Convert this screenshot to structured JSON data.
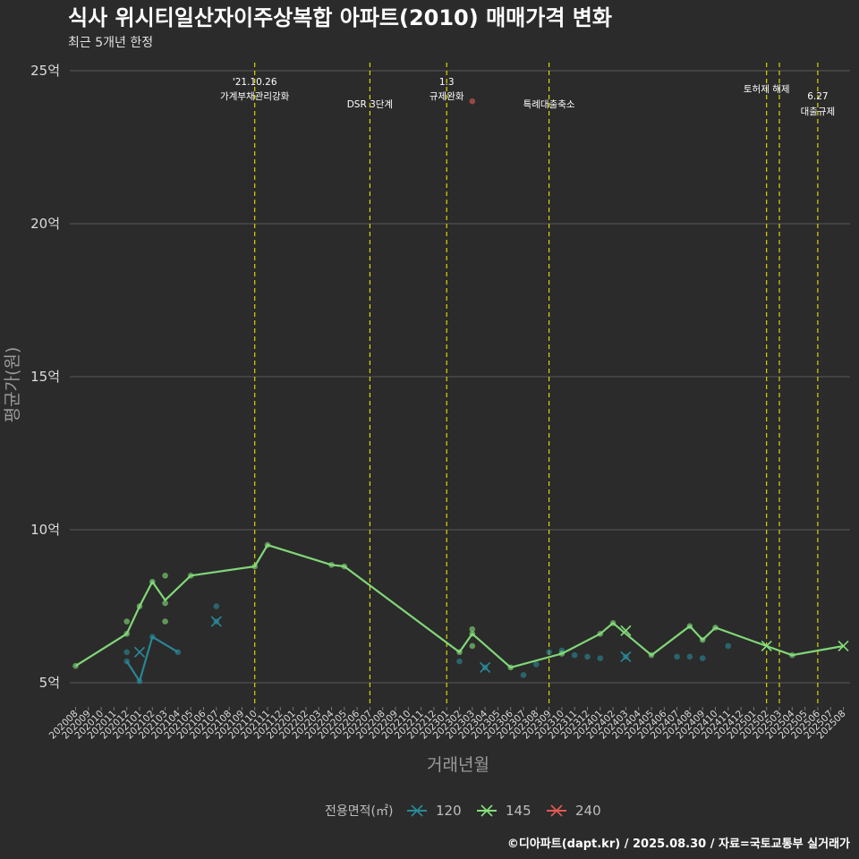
{
  "chart_data": {
    "type": "line",
    "title": "식사 위시티일산자이주상복합 아파트(2010) 매매가격 변화",
    "subtitle": "최근 5개년 한정",
    "xlabel": "거래년월",
    "ylabel": "평균가(원)",
    "caption": "©디아파트(dapt.kr) / 2025.08.30 / 자료=국토교통부 실거래가",
    "ylim": [
      4.5,
      25.5
    ],
    "y_ticks": [
      {
        "value": 5,
        "label": "5억"
      },
      {
        "value": 10,
        "label": "10억"
      },
      {
        "value": 15,
        "label": "15억"
      },
      {
        "value": 20,
        "label": "20억"
      },
      {
        "value": 25,
        "label": "25억"
      }
    ],
    "categories": [
      "202008",
      "202009",
      "202010",
      "202011",
      "202012",
      "202101",
      "202102",
      "202103",
      "202104",
      "202105",
      "202106",
      "202107",
      "202108",
      "202109",
      "202110",
      "202111",
      "202112",
      "202201",
      "202202",
      "202203",
      "202204",
      "202205",
      "202206",
      "202207",
      "202208",
      "202209",
      "202210",
      "202211",
      "202212",
      "202301",
      "202302",
      "202303",
      "202304",
      "202305",
      "202306",
      "202307",
      "202308",
      "202309",
      "202310",
      "202311",
      "202312",
      "202401",
      "202402",
      "202403",
      "202404",
      "202405",
      "202406",
      "202407",
      "202408",
      "202409",
      "202410",
      "202411",
      "202412",
      "202501",
      "202502",
      "202503",
      "202504",
      "202505",
      "202506",
      "202507",
      "202508"
    ],
    "legend": {
      "title": "전용면적(㎡)",
      "items": [
        {
          "name": "120",
          "color": "#2a8a9a"
        },
        {
          "name": "145",
          "color": "#86e07c"
        },
        {
          "name": "240",
          "color": "#e05a52"
        }
      ]
    },
    "series": [
      {
        "name": "120",
        "color": "#2a8a9a",
        "line": [
          [
            "202012",
            5.7
          ],
          [
            "202101",
            5.05
          ],
          [
            "202102",
            6.5
          ],
          [
            "202104",
            6.0
          ]
        ],
        "points": [
          [
            "202012",
            6.0
          ],
          [
            "202012",
            5.7
          ],
          [
            "202101",
            5.05
          ],
          [
            "202102",
            6.5
          ],
          [
            "202104",
            6.0
          ],
          [
            "202107",
            7.5
          ],
          [
            "202107",
            7.0
          ],
          [
            "202302",
            5.7
          ],
          [
            "202304",
            5.5
          ],
          [
            "202307",
            5.25
          ],
          [
            "202308",
            5.6
          ],
          [
            "202309",
            6.0
          ],
          [
            "202310",
            6.05
          ],
          [
            "202311",
            5.9
          ],
          [
            "202312",
            5.85
          ],
          [
            "202401",
            5.8
          ],
          [
            "202403",
            5.85
          ],
          [
            "202407",
            5.85
          ],
          [
            "202408",
            5.85
          ],
          [
            "202409",
            5.8
          ],
          [
            "202411",
            6.2
          ]
        ],
        "x_marks": [
          [
            "202101",
            6.0
          ],
          [
            "202107",
            7.0
          ],
          [
            "202304",
            5.5
          ],
          [
            "202403",
            5.85
          ]
        ]
      },
      {
        "name": "145",
        "color": "#86e07c",
        "line": [
          [
            "202008",
            5.55
          ],
          [
            "202012",
            6.6
          ],
          [
            "202101",
            7.5
          ],
          [
            "202102",
            8.3
          ],
          [
            "202103",
            7.7
          ],
          [
            "202105",
            8.5
          ],
          [
            "202110",
            8.8
          ],
          [
            "202111",
            9.5
          ],
          [
            "202204",
            8.85
          ],
          [
            "202205",
            8.8
          ],
          [
            "202302",
            6.0
          ],
          [
            "202303",
            6.6
          ],
          [
            "202306",
            5.5
          ],
          [
            "202310",
            5.95
          ],
          [
            "202401",
            6.6
          ],
          [
            "202402",
            6.95
          ],
          [
            "202405",
            5.9
          ],
          [
            "202408",
            6.85
          ],
          [
            "202409",
            6.4
          ],
          [
            "202410",
            6.8
          ],
          [
            "202502",
            6.2
          ],
          [
            "202504",
            5.9
          ],
          [
            "202508",
            6.2
          ]
        ],
        "points": [
          [
            "202008",
            5.55
          ],
          [
            "202012",
            7.0
          ],
          [
            "202012",
            6.6
          ],
          [
            "202101",
            7.5
          ],
          [
            "202102",
            8.3
          ],
          [
            "202103",
            8.5
          ],
          [
            "202103",
            7.6
          ],
          [
            "202103",
            7.0
          ],
          [
            "202105",
            8.5
          ],
          [
            "202110",
            8.8
          ],
          [
            "202111",
            9.5
          ],
          [
            "202204",
            8.85
          ],
          [
            "202205",
            8.8
          ],
          [
            "202302",
            6.0
          ],
          [
            "202303",
            6.75
          ],
          [
            "202303",
            6.6
          ],
          [
            "202303",
            6.2
          ],
          [
            "202306",
            5.5
          ],
          [
            "202310",
            5.95
          ],
          [
            "202401",
            6.6
          ],
          [
            "202402",
            6.95
          ],
          [
            "202405",
            5.9
          ],
          [
            "202408",
            6.85
          ],
          [
            "202409",
            6.4
          ],
          [
            "202410",
            6.8
          ],
          [
            "202504",
            5.9
          ]
        ],
        "x_marks": [
          [
            "202403",
            6.7
          ],
          [
            "202502",
            6.2
          ],
          [
            "202508",
            6.2
          ]
        ]
      },
      {
        "name": "240",
        "color": "#e05a52",
        "line": [],
        "points": [
          [
            "202303",
            24.0
          ]
        ],
        "x_marks": []
      }
    ],
    "annotations": [
      {
        "x": "202110",
        "lines": [
          "'21.10.26",
          "가계부채관리강화"
        ]
      },
      {
        "x": "202207",
        "lines": [
          "DSR 3단계"
        ]
      },
      {
        "x": "202301",
        "lines": [
          "1.3",
          "규제완화"
        ]
      },
      {
        "x": "202309",
        "lines": [
          "특례대출축소"
        ]
      },
      {
        "x": "202502",
        "lines": [
          "토허제 해제"
        ]
      },
      {
        "x": "202503",
        "lines": []
      },
      {
        "x": "202506",
        "lines": [
          "6.27",
          "대출규제"
        ]
      }
    ]
  }
}
